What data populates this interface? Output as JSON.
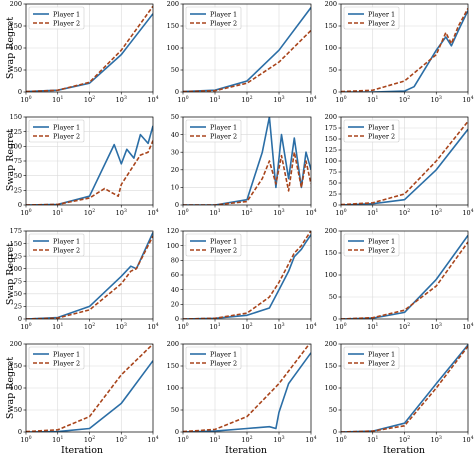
{
  "figure": {
    "ylabel": "Swap Regret",
    "xlabel": "Iteration",
    "x_ticks": [
      "10^0",
      "10^1",
      "10^2",
      "10^3",
      "10^4"
    ],
    "colors": {
      "player1": "#2b6ea6",
      "player2": "#a8441b"
    }
  },
  "chart_data": [
    {
      "type": "line",
      "ylim": [
        0,
        200
      ],
      "yticks": [
        0,
        50,
        100,
        150,
        200
      ],
      "xlim": [
        1,
        10000
      ],
      "xscale": "log",
      "grid": true,
      "legend": "top-left",
      "series": [
        {
          "name": "Player 1",
          "style": "solid",
          "x": [
            1,
            10,
            100,
            1000,
            10000
          ],
          "y": [
            1,
            4,
            20,
            85,
            178
          ]
        },
        {
          "name": "Player 2",
          "style": "dashed",
          "x": [
            1,
            10,
            100,
            1000,
            10000
          ],
          "y": [
            1,
            4,
            22,
            95,
            195
          ]
        }
      ]
    },
    {
      "type": "line",
      "ylim": [
        0,
        200
      ],
      "yticks": [
        0,
        50,
        100,
        150,
        200
      ],
      "xlim": [
        1,
        10000
      ],
      "xscale": "log",
      "grid": true,
      "legend": "top-left",
      "series": [
        {
          "name": "Player 1",
          "style": "solid",
          "x": [
            1,
            10,
            100,
            1000,
            10000
          ],
          "y": [
            1,
            4,
            25,
            95,
            192
          ]
        },
        {
          "name": "Player 2",
          "style": "dashed",
          "x": [
            1,
            10,
            100,
            1000,
            10000
          ],
          "y": [
            1,
            3,
            20,
            68,
            140
          ]
        }
      ]
    },
    {
      "type": "line",
      "ylim": [
        0,
        200
      ],
      "yticks": [
        0,
        50,
        100,
        150,
        200
      ],
      "xlim": [
        1,
        10000
      ],
      "xscale": "log",
      "grid": true,
      "legend": "top-left",
      "series": [
        {
          "name": "Player 1",
          "style": "solid",
          "x": [
            1,
            10,
            100,
            200,
            1000,
            2000,
            3000,
            5000,
            10000
          ],
          "y": [
            0,
            0,
            2,
            12,
            95,
            125,
            105,
            140,
            185
          ]
        },
        {
          "name": "Player 2",
          "style": "dashed",
          "x": [
            1,
            10,
            100,
            1000,
            2000,
            3000,
            5000,
            10000
          ],
          "y": [
            1,
            4,
            25,
            85,
            135,
            110,
            150,
            190
          ]
        }
      ]
    },
    {
      "type": "line",
      "ylim": [
        0,
        150
      ],
      "yticks": [
        0,
        25,
        50,
        75,
        100,
        125,
        150
      ],
      "xlim": [
        1,
        10000
      ],
      "xscale": "log",
      "grid": true,
      "legend": "top-left",
      "series": [
        {
          "name": "Player 1",
          "style": "solid",
          "x": [
            1,
            10,
            100,
            600,
            1000,
            1500,
            2500,
            4000,
            7000,
            10000
          ],
          "y": [
            0,
            1,
            15,
            103,
            70,
            95,
            80,
            120,
            105,
            135
          ]
        },
        {
          "name": "Player 2",
          "style": "dashed",
          "x": [
            1,
            10,
            100,
            300,
            800,
            1000,
            2000,
            4000,
            7000,
            10000
          ],
          "y": [
            0,
            1,
            12,
            28,
            15,
            35,
            60,
            85,
            90,
            110
          ]
        }
      ]
    },
    {
      "type": "line",
      "ylim": [
        0,
        50
      ],
      "yticks": [
        0,
        10,
        20,
        30,
        40,
        50
      ],
      "xlim": [
        1,
        10000
      ],
      "xscale": "log",
      "grid": true,
      "legend": "top-left",
      "series": [
        {
          "name": "Player 1",
          "style": "solid",
          "x": [
            1,
            10,
            100,
            300,
            500,
            800,
            1200,
            2000,
            3000,
            5000,
            7000,
            10000
          ],
          "y": [
            0,
            0,
            3,
            30,
            50,
            10,
            40,
            15,
            38,
            10,
            30,
            20
          ]
        },
        {
          "name": "Player 2",
          "style": "dashed",
          "x": [
            1,
            10,
            100,
            300,
            500,
            800,
            1200,
            2000,
            3000,
            5000,
            7000,
            10000
          ],
          "y": [
            0,
            0,
            2,
            15,
            25,
            12,
            28,
            8,
            30,
            10,
            25,
            12
          ]
        }
      ]
    },
    {
      "type": "line",
      "ylim": [
        0,
        200
      ],
      "yticks": [
        0,
        25,
        50,
        75,
        100,
        125,
        150,
        175,
        200
      ],
      "xlim": [
        1,
        10000
      ],
      "xscale": "log",
      "grid": true,
      "legend": "top-left",
      "series": [
        {
          "name": "Player 1",
          "style": "solid",
          "x": [
            1,
            10,
            100,
            1000,
            10000
          ],
          "y": [
            0,
            3,
            12,
            80,
            172
          ]
        },
        {
          "name": "Player 2",
          "style": "dashed",
          "x": [
            1,
            10,
            100,
            1000,
            10000
          ],
          "y": [
            1,
            5,
            25,
            100,
            190
          ]
        }
      ]
    },
    {
      "type": "line",
      "ylim": [
        0,
        175
      ],
      "yticks": [
        0,
        25,
        50,
        75,
        100,
        125,
        150,
        175
      ],
      "xlim": [
        1,
        10000
      ],
      "xscale": "log",
      "grid": true,
      "legend": "top-left",
      "series": [
        {
          "name": "Player 1",
          "style": "solid",
          "x": [
            1,
            10,
            100,
            1000,
            2000,
            3000,
            10000
          ],
          "y": [
            0,
            3,
            25,
            85,
            105,
            100,
            172
          ]
        },
        {
          "name": "Player 2",
          "style": "dashed",
          "x": [
            1,
            10,
            100,
            1000,
            2000,
            3000,
            10000
          ],
          "y": [
            0,
            2,
            18,
            70,
            95,
            100,
            165
          ]
        }
      ]
    },
    {
      "type": "line",
      "ylim": [
        0,
        120
      ],
      "yticks": [
        0,
        20,
        40,
        60,
        80,
        100,
        120
      ],
      "xlim": [
        1,
        10000
      ],
      "xscale": "log",
      "grid": true,
      "legend": "top-left",
      "series": [
        {
          "name": "Player 1",
          "style": "solid",
          "x": [
            1,
            10,
            100,
            500,
            1000,
            2000,
            3000,
            5000,
            7000,
            10000
          ],
          "y": [
            0,
            1,
            5,
            15,
            40,
            65,
            85,
            95,
            105,
            115
          ]
        },
        {
          "name": "Player 2",
          "style": "dashed",
          "x": [
            1,
            10,
            100,
            500,
            1000,
            2000,
            3000,
            5000,
            7000,
            10000
          ],
          "y": [
            0,
            1,
            8,
            30,
            50,
            75,
            90,
            100,
            110,
            120
          ]
        }
      ]
    },
    {
      "type": "line",
      "ylim": [
        0,
        200
      ],
      "yticks": [
        0,
        50,
        100,
        150,
        200
      ],
      "xlim": [
        1,
        10000
      ],
      "xscale": "log",
      "grid": true,
      "legend": "top-left",
      "series": [
        {
          "name": "Player 1",
          "style": "solid",
          "x": [
            1,
            10,
            100,
            1000,
            10000
          ],
          "y": [
            0,
            2,
            15,
            90,
            190
          ]
        },
        {
          "name": "Player 2",
          "style": "dashed",
          "x": [
            1,
            10,
            100,
            1000,
            10000
          ],
          "y": [
            0,
            3,
            20,
            75,
            175
          ]
        }
      ]
    },
    {
      "type": "line",
      "ylim": [
        0,
        200
      ],
      "yticks": [
        0,
        50,
        100,
        150,
        200
      ],
      "xlim": [
        1,
        10000
      ],
      "xscale": "log",
      "grid": true,
      "legend": "top-left",
      "series": [
        {
          "name": "Player 1",
          "style": "solid",
          "x": [
            1,
            10,
            100,
            1000,
            10000
          ],
          "y": [
            0,
            1,
            8,
            65,
            162
          ]
        },
        {
          "name": "Player 2",
          "style": "dashed",
          "x": [
            1,
            10,
            100,
            1000,
            10000
          ],
          "y": [
            1,
            5,
            35,
            130,
            200
          ]
        }
      ]
    },
    {
      "type": "line",
      "ylim": [
        0,
        200
      ],
      "yticks": [
        0,
        50,
        100,
        150,
        200
      ],
      "xlim": [
        1,
        10000
      ],
      "xscale": "log",
      "grid": true,
      "legend": "top-left",
      "series": [
        {
          "name": "Player 1",
          "style": "solid",
          "x": [
            1,
            10,
            100,
            500,
            800,
            1000,
            2000,
            10000
          ],
          "y": [
            0,
            2,
            8,
            12,
            8,
            45,
            110,
            180
          ]
        },
        {
          "name": "Player 2",
          "style": "dashed",
          "x": [
            1,
            10,
            100,
            1000,
            10000
          ],
          "y": [
            1,
            6,
            35,
            110,
            205
          ]
        }
      ]
    },
    {
      "type": "line",
      "ylim": [
        0,
        200
      ],
      "yticks": [
        0,
        50,
        100,
        150,
        200
      ],
      "xlim": [
        1,
        10000
      ],
      "xscale": "log",
      "grid": true,
      "legend": "top-left",
      "series": [
        {
          "name": "Player 1",
          "style": "solid",
          "x": [
            1,
            10,
            100,
            1000,
            10000
          ],
          "y": [
            0,
            2,
            20,
            110,
            198
          ]
        },
        {
          "name": "Player 2",
          "style": "dashed",
          "x": [
            1,
            10,
            100,
            1000,
            10000
          ],
          "y": [
            0,
            2,
            14,
            100,
            195
          ]
        }
      ]
    }
  ]
}
